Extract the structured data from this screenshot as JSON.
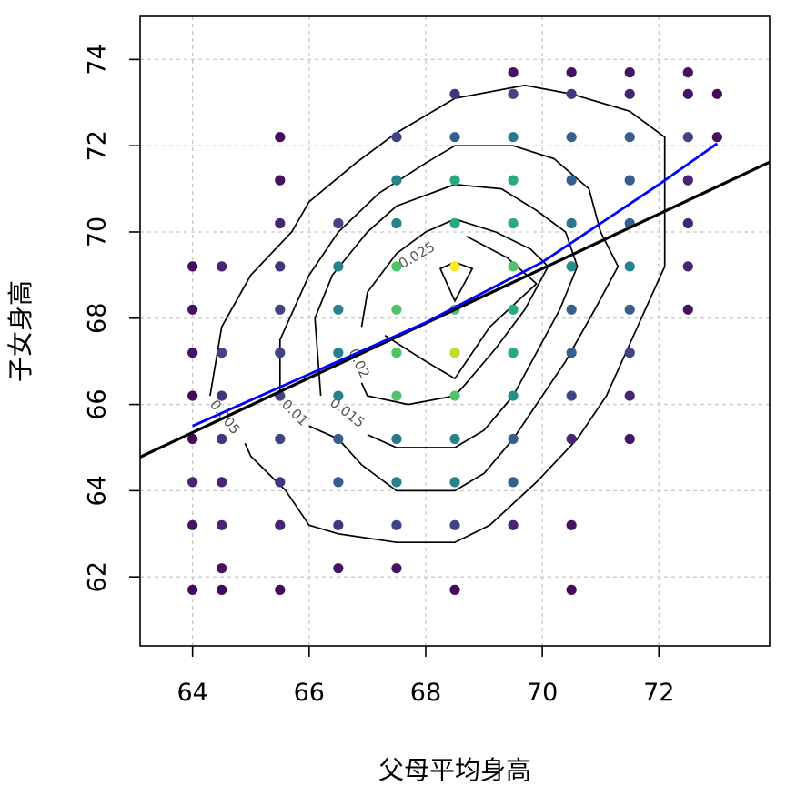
{
  "chart_data": {
    "type": "scatter",
    "title": "",
    "xlabel": "父母平均身高",
    "ylabel": "子女身高",
    "xlim": [
      63.1,
      73.9
    ],
    "ylim": [
      60.4,
      75.0
    ],
    "xticks": [
      64,
      66,
      68,
      70,
      72
    ],
    "yticks": [
      62,
      64,
      66,
      68,
      70,
      72,
      74
    ],
    "grid": true,
    "grid_style": "dotted-gray",
    "legend": "none",
    "point_colormap": "viridis (dark purple = low count, yellow = high count)",
    "points": [
      {
        "x": 64,
        "y": 61.7,
        "c": 0.02
      },
      {
        "x": 64,
        "y": 63.2,
        "c": 0.05
      },
      {
        "x": 64,
        "y": 64.2,
        "c": 0.1
      },
      {
        "x": 64,
        "y": 65.2,
        "c": 0.02
      },
      {
        "x": 64,
        "y": 66.2,
        "c": 0.02
      },
      {
        "x": 64,
        "y": 67.2,
        "c": 0.05
      },
      {
        "x": 64,
        "y": 68.2,
        "c": 0.05
      },
      {
        "x": 64,
        "y": 69.2,
        "c": 0.02
      },
      {
        "x": 64.5,
        "y": 61.7,
        "c": 0.02
      },
      {
        "x": 64.5,
        "y": 62.2,
        "c": 0.05
      },
      {
        "x": 64.5,
        "y": 63.2,
        "c": 0.1
      },
      {
        "x": 64.5,
        "y": 64.2,
        "c": 0.1
      },
      {
        "x": 64.5,
        "y": 65.2,
        "c": 0.15
      },
      {
        "x": 64.5,
        "y": 66.2,
        "c": 0.15
      },
      {
        "x": 64.5,
        "y": 67.2,
        "c": 0.2
      },
      {
        "x": 64.5,
        "y": 69.2,
        "c": 0.1
      },
      {
        "x": 65.5,
        "y": 61.7,
        "c": 0.02
      },
      {
        "x": 65.5,
        "y": 63.2,
        "c": 0.1
      },
      {
        "x": 65.5,
        "y": 64.2,
        "c": 0.15
      },
      {
        "x": 65.5,
        "y": 65.2,
        "c": 0.2
      },
      {
        "x": 65.5,
        "y": 66.2,
        "c": 0.2
      },
      {
        "x": 65.5,
        "y": 67.2,
        "c": 0.2
      },
      {
        "x": 65.5,
        "y": 68.2,
        "c": 0.2
      },
      {
        "x": 65.5,
        "y": 69.2,
        "c": 0.15
      },
      {
        "x": 65.5,
        "y": 70.2,
        "c": 0.1
      },
      {
        "x": 65.5,
        "y": 71.2,
        "c": 0.05
      },
      {
        "x": 65.5,
        "y": 72.2,
        "c": 0.02
      },
      {
        "x": 66.5,
        "y": 62.2,
        "c": 0.05
      },
      {
        "x": 66.5,
        "y": 63.2,
        "c": 0.15
      },
      {
        "x": 66.5,
        "y": 64.2,
        "c": 0.3
      },
      {
        "x": 66.5,
        "y": 65.2,
        "c": 0.3
      },
      {
        "x": 66.5,
        "y": 66.2,
        "c": 0.45
      },
      {
        "x": 66.5,
        "y": 67.2,
        "c": 0.45
      },
      {
        "x": 66.5,
        "y": 68.2,
        "c": 0.45
      },
      {
        "x": 66.5,
        "y": 69.2,
        "c": 0.45
      },
      {
        "x": 66.5,
        "y": 70.2,
        "c": 0.2
      },
      {
        "x": 67.5,
        "y": 62.2,
        "c": 0.05
      },
      {
        "x": 67.5,
        "y": 63.2,
        "c": 0.2
      },
      {
        "x": 67.5,
        "y": 64.2,
        "c": 0.45
      },
      {
        "x": 67.5,
        "y": 65.2,
        "c": 0.4
      },
      {
        "x": 67.5,
        "y": 66.2,
        "c": 0.72
      },
      {
        "x": 67.5,
        "y": 67.2,
        "c": 0.72
      },
      {
        "x": 67.5,
        "y": 68.2,
        "c": 0.72
      },
      {
        "x": 67.5,
        "y": 69.2,
        "c": 0.72
      },
      {
        "x": 67.5,
        "y": 70.2,
        "c": 0.45
      },
      {
        "x": 67.5,
        "y": 71.2,
        "c": 0.45
      },
      {
        "x": 67.5,
        "y": 72.2,
        "c": 0.2
      },
      {
        "x": 68.5,
        "y": 61.7,
        "c": 0.02
      },
      {
        "x": 68.5,
        "y": 63.2,
        "c": 0.2
      },
      {
        "x": 68.5,
        "y": 64.2,
        "c": 0.45
      },
      {
        "x": 68.5,
        "y": 65.2,
        "c": 0.45
      },
      {
        "x": 68.5,
        "y": 66.2,
        "c": 0.72
      },
      {
        "x": 68.5,
        "y": 67.2,
        "c": 0.9
      },
      {
        "x": 68.5,
        "y": 68.2,
        "c": 0.72
      },
      {
        "x": 68.5,
        "y": 69.2,
        "c": 1.0
      },
      {
        "x": 68.5,
        "y": 70.2,
        "c": 0.6
      },
      {
        "x": 68.5,
        "y": 71.2,
        "c": 0.6
      },
      {
        "x": 68.5,
        "y": 72.2,
        "c": 0.3
      },
      {
        "x": 68.5,
        "y": 73.2,
        "c": 0.15
      },
      {
        "x": 69.5,
        "y": 63.2,
        "c": 0.1
      },
      {
        "x": 69.5,
        "y": 64.2,
        "c": 0.3
      },
      {
        "x": 69.5,
        "y": 65.2,
        "c": 0.3
      },
      {
        "x": 69.5,
        "y": 66.2,
        "c": 0.5
      },
      {
        "x": 69.5,
        "y": 67.2,
        "c": 0.6
      },
      {
        "x": 69.5,
        "y": 68.2,
        "c": 0.6
      },
      {
        "x": 69.5,
        "y": 69.2,
        "c": 0.72
      },
      {
        "x": 69.5,
        "y": 70.2,
        "c": 0.6
      },
      {
        "x": 69.5,
        "y": 71.2,
        "c": 0.6
      },
      {
        "x": 69.5,
        "y": 72.2,
        "c": 0.4
      },
      {
        "x": 69.5,
        "y": 73.2,
        "c": 0.2
      },
      {
        "x": 69.5,
        "y": 73.7,
        "c": 0.05
      },
      {
        "x": 70.5,
        "y": 61.7,
        "c": 0.02
      },
      {
        "x": 70.5,
        "y": 63.2,
        "c": 0.05
      },
      {
        "x": 70.5,
        "y": 65.2,
        "c": 0.1
      },
      {
        "x": 70.5,
        "y": 66.2,
        "c": 0.2
      },
      {
        "x": 70.5,
        "y": 67.2,
        "c": 0.3
      },
      {
        "x": 70.5,
        "y": 68.2,
        "c": 0.3
      },
      {
        "x": 70.5,
        "y": 69.2,
        "c": 0.5
      },
      {
        "x": 70.5,
        "y": 70.2,
        "c": 0.4
      },
      {
        "x": 70.5,
        "y": 71.2,
        "c": 0.3
      },
      {
        "x": 70.5,
        "y": 72.2,
        "c": 0.3
      },
      {
        "x": 70.5,
        "y": 73.2,
        "c": 0.15
      },
      {
        "x": 70.5,
        "y": 73.7,
        "c": 0.05
      },
      {
        "x": 71.5,
        "y": 65.2,
        "c": 0.05
      },
      {
        "x": 71.5,
        "y": 66.2,
        "c": 0.1
      },
      {
        "x": 71.5,
        "y": 67.2,
        "c": 0.2
      },
      {
        "x": 71.5,
        "y": 68.2,
        "c": 0.3
      },
      {
        "x": 71.5,
        "y": 69.2,
        "c": 0.45
      },
      {
        "x": 71.5,
        "y": 70.2,
        "c": 0.3
      },
      {
        "x": 71.5,
        "y": 71.2,
        "c": 0.3
      },
      {
        "x": 71.5,
        "y": 72.2,
        "c": 0.3
      },
      {
        "x": 71.5,
        "y": 73.2,
        "c": 0.1
      },
      {
        "x": 71.5,
        "y": 73.7,
        "c": 0.05
      },
      {
        "x": 72.5,
        "y": 68.2,
        "c": 0.05
      },
      {
        "x": 72.5,
        "y": 69.2,
        "c": 0.1
      },
      {
        "x": 72.5,
        "y": 70.2,
        "c": 0.1
      },
      {
        "x": 72.5,
        "y": 71.2,
        "c": 0.1
      },
      {
        "x": 72.5,
        "y": 72.2,
        "c": 0.2
      },
      {
        "x": 72.5,
        "y": 73.2,
        "c": 0.05
      },
      {
        "x": 72.5,
        "y": 73.7,
        "c": 0.05
      },
      {
        "x": 73,
        "y": 72.2,
        "c": 0.05
      },
      {
        "x": 73,
        "y": 73.2,
        "c": 0.02
      }
    ],
    "contours": [
      {
        "level": "0.005",
        "label_at": {
          "x": 64.55,
          "y": 65.7,
          "rot": 52
        },
        "segments": [
          [
            [
              64.3,
              66.2
            ],
            [
              64.5,
              67.8
            ],
            [
              65.0,
              69.0
            ],
            [
              65.7,
              70.0
            ],
            [
              66.0,
              70.7
            ],
            [
              66.8,
              71.6
            ],
            [
              67.5,
              72.3
            ],
            [
              68.5,
              73.1
            ],
            [
              69.7,
              73.4
            ],
            [
              70.5,
              73.2
            ],
            [
              71.5,
              72.8
            ],
            [
              72.1,
              72.2
            ],
            [
              72.1,
              71.0
            ],
            [
              72.1,
              69.2
            ],
            [
              71.7,
              68.0
            ],
            [
              71.1,
              66.2
            ],
            [
              70.6,
              65.2
            ],
            [
              69.9,
              64.2
            ],
            [
              69.1,
              63.2
            ],
            [
              68.5,
              62.8
            ],
            [
              67.5,
              62.8
            ],
            [
              66.5,
              63.0
            ],
            [
              66.0,
              63.2
            ],
            [
              65.6,
              64.0
            ],
            [
              65.0,
              64.8
            ],
            [
              64.9,
              65.1
            ]
          ]
        ]
      },
      {
        "level": "0.01",
        "label_at": {
          "x": 65.75,
          "y": 65.8,
          "rot": 45
        },
        "segments": [
          [
            [
              65.5,
              66.2
            ],
            [
              65.5,
              67.5
            ],
            [
              66.0,
              69.0
            ],
            [
              66.5,
              70.0
            ],
            [
              67.2,
              70.9
            ],
            [
              68.0,
              71.6
            ],
            [
              68.5,
              72.0
            ],
            [
              69.5,
              72.0
            ],
            [
              70.2,
              71.7
            ],
            [
              70.8,
              71.0
            ],
            [
              71.0,
              70.0
            ],
            [
              71.3,
              69.2
            ],
            [
              70.9,
              68.2
            ],
            [
              70.4,
              67.0
            ],
            [
              69.9,
              66.0
            ],
            [
              69.5,
              65.2
            ],
            [
              69.0,
              64.4
            ],
            [
              68.5,
              64.0
            ],
            [
              67.5,
              64.0
            ],
            [
              66.9,
              64.6
            ],
            [
              66.5,
              65.2
            ],
            [
              66.0,
              65.5
            ]
          ]
        ]
      },
      {
        "level": "0.015",
        "label_at": {
          "x": 66.65,
          "y": 65.8,
          "rot": 38
        },
        "segments": [
          [
            [
              66.2,
              66.2
            ],
            [
              66.1,
              68.0
            ],
            [
              66.4,
              69.0
            ],
            [
              67.0,
              70.0
            ],
            [
              67.5,
              70.6
            ],
            [
              68.5,
              71.1
            ],
            [
              69.3,
              71.0
            ],
            [
              69.9,
              70.5
            ],
            [
              70.4,
              70.0
            ],
            [
              70.6,
              69.2
            ],
            [
              70.3,
              68.2
            ],
            [
              69.9,
              67.2
            ],
            [
              69.5,
              66.2
            ],
            [
              69.0,
              65.4
            ],
            [
              68.5,
              65.0
            ],
            [
              67.5,
              65.0
            ],
            [
              67.0,
              65.3
            ]
          ]
        ]
      },
      {
        "level": "0.02",
        "label_at": {
          "x": 66.85,
          "y": 66.95,
          "rot": 65
        },
        "segments": [
          [
            [
              66.9,
              67.8
            ],
            [
              67.0,
              68.6
            ],
            [
              67.5,
              69.5
            ],
            [
              68.0,
              70.0
            ],
            [
              68.5,
              70.3
            ],
            [
              69.2,
              70.0
            ],
            [
              69.8,
              69.6
            ],
            [
              70.1,
              69.2
            ],
            [
              69.7,
              68.2
            ],
            [
              69.2,
              67.3
            ],
            [
              68.7,
              66.5
            ],
            [
              68.5,
              66.2
            ],
            [
              67.7,
              66.0
            ],
            [
              67.0,
              66.2
            ],
            [
              66.9,
              66.5
            ]
          ]
        ]
      },
      {
        "level": "0.025",
        "label_at": {
          "x": 67.85,
          "y": 69.45,
          "rot": -30
        },
        "segments": [
          [
            [
              68.7,
              69.9
            ],
            [
              69.4,
              69.4
            ],
            [
              69.9,
              68.8
            ],
            [
              69.1,
              67.8
            ],
            [
              68.5,
              66.6
            ],
            [
              68.0,
              67.0
            ],
            [
              67.3,
              67.6
            ]
          ],
          [
            [
              68.5,
              69.3
            ],
            [
              68.8,
              69.15
            ],
            [
              68.5,
              68.4
            ],
            [
              68.25,
              69.15
            ],
            [
              68.5,
              69.3
            ]
          ]
        ]
      }
    ],
    "fit_lines": [
      {
        "color": "#000000",
        "width": 3.2,
        "x": [
          63.1,
          73.9
        ],
        "y": [
          64.78,
          71.62
        ]
      },
      {
        "color": "#0000ff",
        "width": 2.8,
        "x": [
          64.0,
          65.0,
          66.0,
          67.0,
          68.0,
          69.0,
          70.0,
          71.0,
          72.0,
          73.0
        ],
        "y": [
          65.5,
          66.1,
          66.7,
          67.3,
          67.9,
          68.6,
          69.3,
          70.2,
          71.1,
          72.05
        ]
      }
    ]
  }
}
